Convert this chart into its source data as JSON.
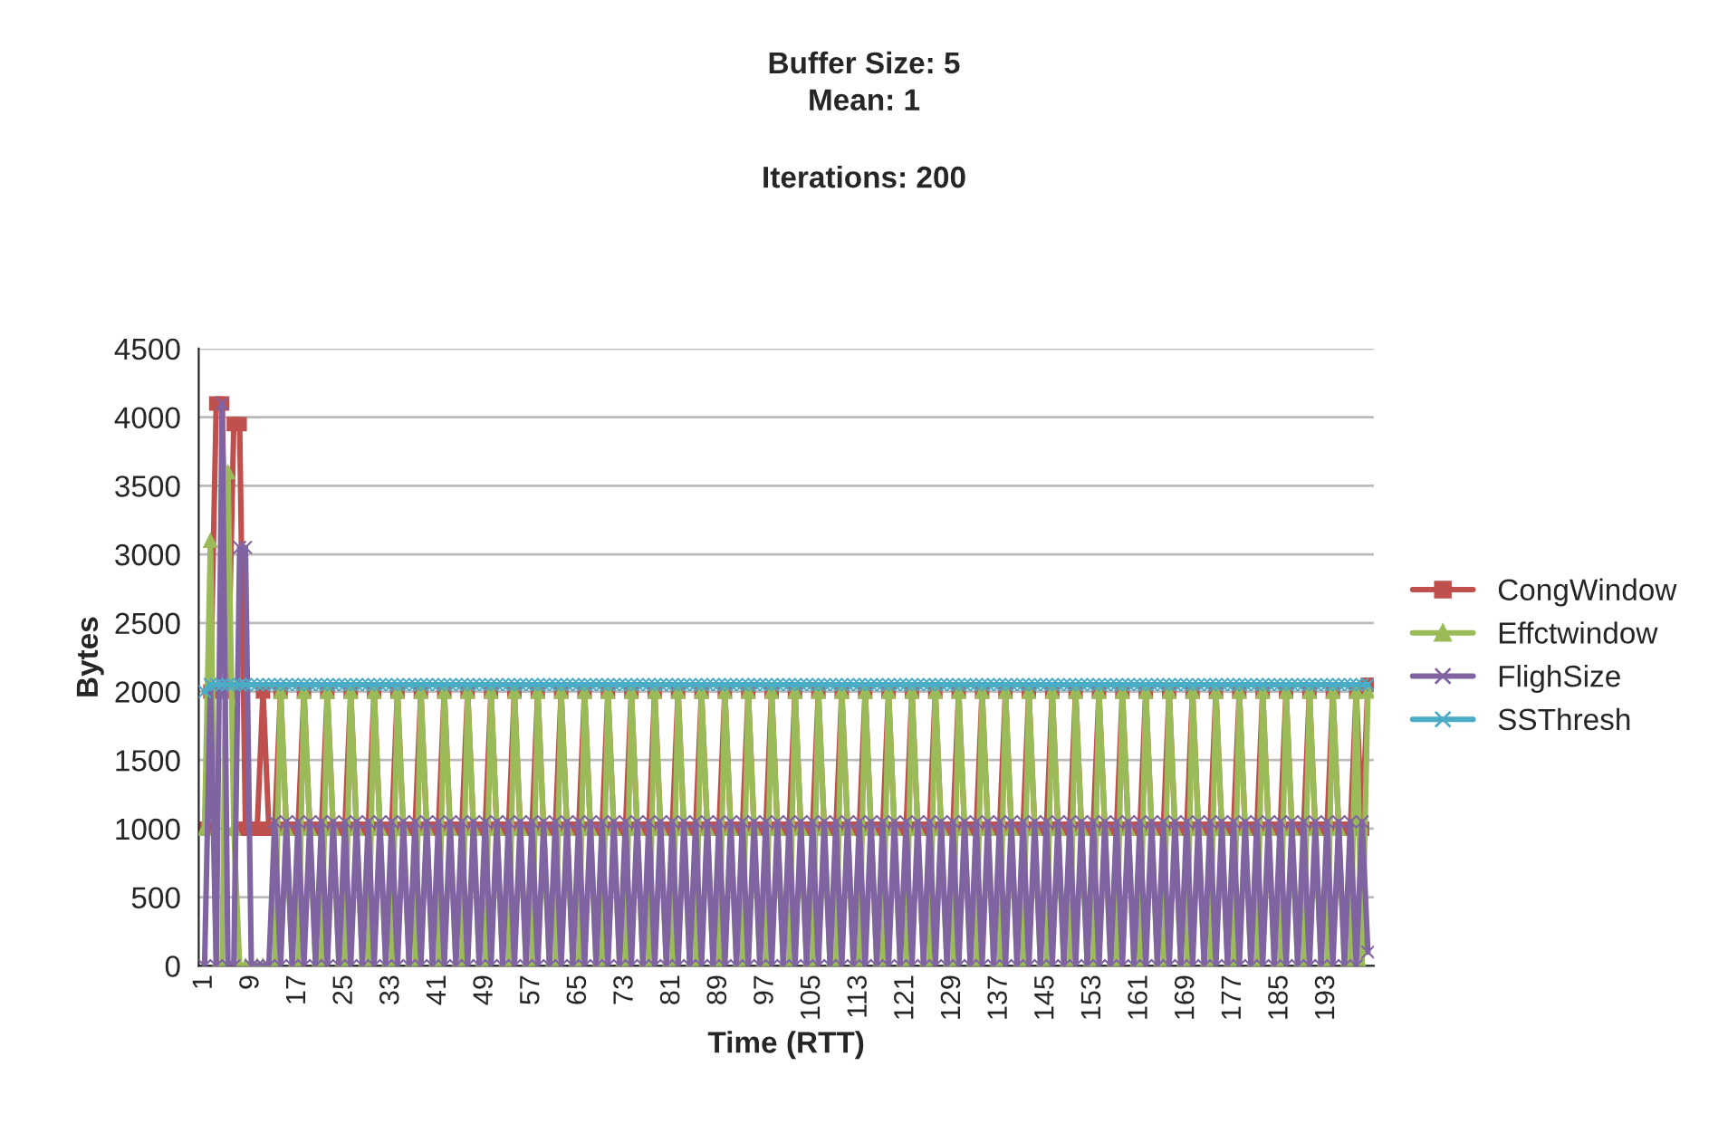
{
  "chart_data": {
    "type": "line",
    "title": "Buffer Size: 5\nMean: 1",
    "subtitle": "Iterations: 200",
    "xlabel": "Time (RTT)",
    "ylabel": "Bytes",
    "ylim": [
      0,
      4500
    ],
    "yticks": [
      0,
      500,
      1000,
      1500,
      2000,
      2500,
      3000,
      3500,
      4000,
      4500
    ],
    "grid": "y",
    "legend": "right",
    "categories": [
      "1",
      null,
      null,
      null,
      null,
      null,
      null,
      null,
      "9",
      null,
      null,
      null,
      null,
      null,
      null,
      null,
      "17",
      null,
      null,
      null,
      null,
      null,
      null,
      null,
      "25",
      null,
      null,
      null,
      null,
      null,
      null,
      null,
      "33",
      null,
      null,
      null,
      null,
      null,
      null,
      null,
      "41",
      null,
      null,
      null,
      null,
      null,
      null,
      null,
      "49",
      null,
      null,
      null,
      null,
      null,
      null,
      null,
      "57",
      null,
      null,
      null,
      null,
      null,
      null,
      null,
      "65",
      null,
      null,
      null,
      null,
      null,
      null,
      null,
      "73",
      null,
      null,
      null,
      null,
      null,
      null,
      null,
      "81",
      null,
      null,
      null,
      null,
      null,
      null,
      null,
      "89",
      null,
      null,
      null,
      null,
      null,
      null,
      null,
      "97",
      null,
      null,
      null,
      null,
      null,
      null,
      null,
      "105",
      null,
      null,
      null,
      null,
      null,
      null,
      null,
      "113",
      null,
      null,
      null,
      null,
      null,
      null,
      null,
      "121",
      null,
      null,
      null,
      null,
      null,
      null,
      null,
      "129",
      null,
      null,
      null,
      null,
      null,
      null,
      null,
      "137",
      null,
      null,
      null,
      null,
      null,
      null,
      null,
      "145",
      null,
      null,
      null,
      null,
      null,
      null,
      null,
      "153",
      null,
      null,
      null,
      null,
      null,
      null,
      null,
      "161",
      null,
      null,
      null,
      null,
      null,
      null,
      null,
      "169",
      null,
      null,
      null,
      null,
      null,
      null,
      null,
      "177",
      null,
      null,
      null,
      null,
      null,
      null,
      null,
      "185",
      null,
      null,
      null,
      null,
      null,
      null,
      null,
      "193",
      null,
      null,
      null,
      null,
      null,
      null,
      null
    ],
    "series": [
      {
        "name": "CongWindow",
        "color": "#c0504d",
        "marker": "square",
        "values": [
          1000,
          2000,
          4100,
          4100,
          2000,
          3950,
          3950,
          1000,
          1000,
          1000,
          2000,
          1000,
          1000,
          2000,
          1000,
          1000,
          1000,
          2000,
          1000,
          1000,
          1000,
          2000,
          1000,
          1000,
          1000,
          2000,
          1000,
          1000,
          1000,
          2000,
          1000,
          1000,
          1000,
          2000,
          1000,
          1000,
          1000,
          2000,
          1000,
          1000,
          1000,
          2000,
          1000,
          1000,
          1000,
          2000,
          1000,
          1000,
          1000,
          2000,
          1000,
          1000,
          1000,
          2000,
          1000,
          1000,
          1000,
          2000,
          1000,
          1000,
          1000,
          2000,
          1000,
          1000,
          1000,
          2000,
          1000,
          1000,
          1000,
          2000,
          1000,
          1000,
          1000,
          2000,
          1000,
          1000,
          1000,
          2000,
          1000,
          1000,
          1000,
          2000,
          1000,
          1000,
          1000,
          2000,
          1000,
          1000,
          1000,
          2000,
          1000,
          1000,
          1000,
          2000,
          1000,
          1000,
          1000,
          2000,
          1000,
          1000,
          1000,
          2000,
          1000,
          1000,
          1000,
          2000,
          1000,
          1000,
          1000,
          2000,
          1000,
          1000,
          1000,
          2000,
          1000,
          1000,
          1000,
          2000,
          1000,
          1000,
          1000,
          2000,
          1000,
          1000,
          1000,
          2000,
          1000,
          1000,
          1000,
          2000,
          1000,
          1000,
          1000,
          2000,
          1000,
          1000,
          1000,
          2000,
          1000,
          1000,
          1000,
          2000,
          1000,
          1000,
          1000,
          2000,
          1000,
          1000,
          1000,
          2000,
          1000,
          1000,
          1000,
          2000,
          1000,
          1000,
          1000,
          2000,
          1000,
          1000,
          1000,
          2000,
          1000,
          1000,
          1000,
          2000,
          1000,
          1000,
          1000,
          2000,
          1000,
          1000,
          1000,
          2000,
          1000,
          1000,
          1000,
          2000,
          1000,
          1000,
          1000,
          2000,
          1000,
          1000,
          1000,
          2000,
          1000,
          1000,
          1000,
          2000,
          1000,
          1000,
          1000,
          2000,
          1000,
          1000,
          1000,
          2000,
          1000,
          2050
        ]
      },
      {
        "name": "Effctwindow",
        "color": "#9bbb59",
        "marker": "triangle",
        "values": [
          1000,
          3100,
          0,
          0,
          3600,
          1000,
          0,
          0,
          0,
          0,
          0,
          0,
          0,
          2000,
          1000,
          0,
          0,
          2000,
          1000,
          0,
          0,
          2000,
          1000,
          0,
          0,
          2000,
          1000,
          0,
          0,
          2000,
          1000,
          0,
          0,
          2000,
          1000,
          0,
          0,
          2000,
          1000,
          0,
          0,
          2000,
          1000,
          0,
          0,
          2000,
          1000,
          0,
          0,
          2000,
          1000,
          0,
          0,
          2000,
          1000,
          0,
          0,
          2000,
          1000,
          0,
          0,
          2000,
          1000,
          0,
          0,
          2000,
          1000,
          0,
          0,
          2000,
          1000,
          0,
          0,
          2000,
          1000,
          0,
          0,
          2000,
          1000,
          0,
          0,
          2000,
          1000,
          0,
          0,
          2000,
          1000,
          0,
          0,
          2000,
          1000,
          0,
          0,
          2000,
          1000,
          0,
          0,
          2000,
          1000,
          0,
          0,
          2000,
          1000,
          0,
          0,
          2000,
          1000,
          0,
          0,
          2000,
          1000,
          0,
          0,
          2000,
          1000,
          0,
          0,
          2000,
          1000,
          0,
          0,
          2000,
          1000,
          0,
          0,
          2000,
          1000,
          0,
          0,
          2000,
          1000,
          0,
          0,
          2000,
          1000,
          0,
          0,
          2000,
          1000,
          0,
          0,
          2000,
          1000,
          0,
          0,
          2000,
          1000,
          0,
          0,
          2000,
          1000,
          0,
          0,
          2000,
          1000,
          0,
          0,
          2000,
          1000,
          0,
          0,
          2000,
          1000,
          0,
          0,
          2000,
          1000,
          0,
          0,
          2000,
          1000,
          0,
          0,
          2000,
          1000,
          0,
          0,
          2000,
          1000,
          0,
          0,
          2000,
          1000,
          0,
          0,
          2000,
          1000,
          0,
          0,
          2000,
          1000,
          0,
          0,
          2000,
          1000,
          0,
          0,
          2000,
          0,
          2000
        ]
      },
      {
        "name": "FlighSize",
        "color": "#8064a2",
        "marker": "cross",
        "values": [
          0,
          2050,
          0,
          4100,
          0,
          0,
          3050,
          3050,
          0,
          0,
          0,
          0,
          1050,
          0,
          1050,
          0,
          1050,
          0,
          1050,
          0,
          1050,
          0,
          1050,
          0,
          1050,
          0,
          1050,
          0,
          1050,
          0,
          1050,
          0,
          1050,
          0,
          1050,
          0,
          1050,
          0,
          1050,
          0,
          1050,
          0,
          1050,
          0,
          1050,
          0,
          1050,
          0,
          1050,
          0,
          1050,
          0,
          1050,
          0,
          1050,
          0,
          1050,
          0,
          1050,
          0,
          1050,
          0,
          1050,
          0,
          1050,
          0,
          1050,
          0,
          1050,
          0,
          1050,
          0,
          1050,
          0,
          1050,
          0,
          1050,
          0,
          1050,
          0,
          1050,
          0,
          1050,
          0,
          1050,
          0,
          1050,
          0,
          1050,
          0,
          1050,
          0,
          1050,
          0,
          1050,
          0,
          1050,
          0,
          1050,
          0,
          1050,
          0,
          1050,
          0,
          1050,
          0,
          1050,
          0,
          1050,
          0,
          1050,
          0,
          1050,
          0,
          1050,
          0,
          1050,
          0,
          1050,
          0,
          1050,
          0,
          1050,
          0,
          1050,
          0,
          1050,
          0,
          1050,
          0,
          1050,
          0,
          1050,
          0,
          1050,
          0,
          1050,
          0,
          1050,
          0,
          1050,
          0,
          1050,
          0,
          1050,
          0,
          1050,
          0,
          1050,
          0,
          1050,
          0,
          1050,
          0,
          1050,
          0,
          1050,
          0,
          1050,
          0,
          1050,
          0,
          1050,
          0,
          1050,
          0,
          1050,
          0,
          1050,
          0,
          1050,
          0,
          1050,
          0,
          1050,
          0,
          1050,
          0,
          1050,
          0,
          1050,
          0,
          1050,
          0,
          1050,
          0,
          1050,
          0,
          1050,
          0,
          1050,
          0,
          1050,
          0,
          1050,
          0,
          1050,
          0,
          1050,
          100
        ]
      },
      {
        "name": "SSThresh",
        "color": "#4bacc6",
        "marker": "cross",
        "values": [
          2000,
          2050,
          2050,
          2050,
          2050,
          2050,
          2050,
          2050,
          2050,
          2050,
          2050,
          2050,
          2050,
          2050,
          2050,
          2050,
          2050,
          2050,
          2050,
          2050,
          2050,
          2050,
          2050,
          2050,
          2050,
          2050,
          2050,
          2050,
          2050,
          2050,
          2050,
          2050,
          2050,
          2050,
          2050,
          2050,
          2050,
          2050,
          2050,
          2050,
          2050,
          2050,
          2050,
          2050,
          2050,
          2050,
          2050,
          2050,
          2050,
          2050,
          2050,
          2050,
          2050,
          2050,
          2050,
          2050,
          2050,
          2050,
          2050,
          2050,
          2050,
          2050,
          2050,
          2050,
          2050,
          2050,
          2050,
          2050,
          2050,
          2050,
          2050,
          2050,
          2050,
          2050,
          2050,
          2050,
          2050,
          2050,
          2050,
          2050,
          2050,
          2050,
          2050,
          2050,
          2050,
          2050,
          2050,
          2050,
          2050,
          2050,
          2050,
          2050,
          2050,
          2050,
          2050,
          2050,
          2050,
          2050,
          2050,
          2050,
          2050,
          2050,
          2050,
          2050,
          2050,
          2050,
          2050,
          2050,
          2050,
          2050,
          2050,
          2050,
          2050,
          2050,
          2050,
          2050,
          2050,
          2050,
          2050,
          2050,
          2050,
          2050,
          2050,
          2050,
          2050,
          2050,
          2050,
          2050,
          2050,
          2050,
          2050,
          2050,
          2050,
          2050,
          2050,
          2050,
          2050,
          2050,
          2050,
          2050,
          2050,
          2050,
          2050,
          2050,
          2050,
          2050,
          2050,
          2050,
          2050,
          2050,
          2050,
          2050,
          2050,
          2050,
          2050,
          2050,
          2050,
          2050,
          2050,
          2050,
          2050,
          2050,
          2050,
          2050,
          2050,
          2050,
          2050,
          2050,
          2050,
          2050,
          2050,
          2050,
          2050,
          2050,
          2050,
          2050,
          2050,
          2050,
          2050,
          2050,
          2050,
          2050,
          2050,
          2050,
          2050,
          2050,
          2050,
          2050,
          2050,
          2050,
          2050,
          2050,
          2050,
          2050,
          2050,
          2050,
          2050,
          2050,
          2050,
          2050
        ]
      }
    ]
  }
}
